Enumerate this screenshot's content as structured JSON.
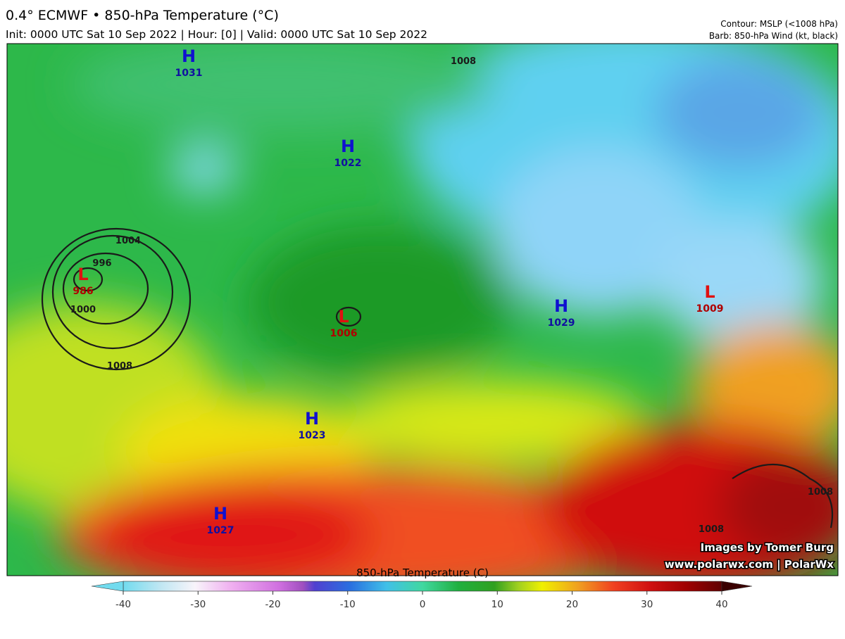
{
  "header": {
    "title": "0.4° ECMWF • 850-hPa Temperature (°C)",
    "subtitle": "Init: 0000 UTC Sat 10 Sep 2022 | Hour: [0] | Valid: 0000 UTC Sat 10 Sep 2022",
    "contour_note": "Contour: MSLP (<1008 hPa)",
    "barb_note": "Barb: 850-hPa Wind (kt, black)"
  },
  "pressure_centers": [
    {
      "label": "H",
      "value": "1031"
    },
    {
      "label": "H",
      "value": "1022"
    },
    {
      "label": "L",
      "value": "986"
    },
    {
      "label": "L",
      "value": "1006"
    },
    {
      "label": "H",
      "value": "1029"
    },
    {
      "label": "L",
      "value": "1009"
    },
    {
      "label": "H",
      "value": "1023"
    },
    {
      "label": "H",
      "value": "1027"
    }
  ],
  "contour_labels": [
    "1008",
    "1004",
    "996",
    "1000",
    "1008",
    "1008",
    "1008"
  ],
  "colorbar": {
    "title": "850-hPa Temperature (C)",
    "range": [
      -40,
      40
    ],
    "ticks": [
      -40,
      -30,
      -20,
      -10,
      0,
      10,
      20,
      30,
      40
    ]
  },
  "credits": [
    "Images by Tomer Burg",
    "www.polarwx.com | PolarWx"
  ]
}
